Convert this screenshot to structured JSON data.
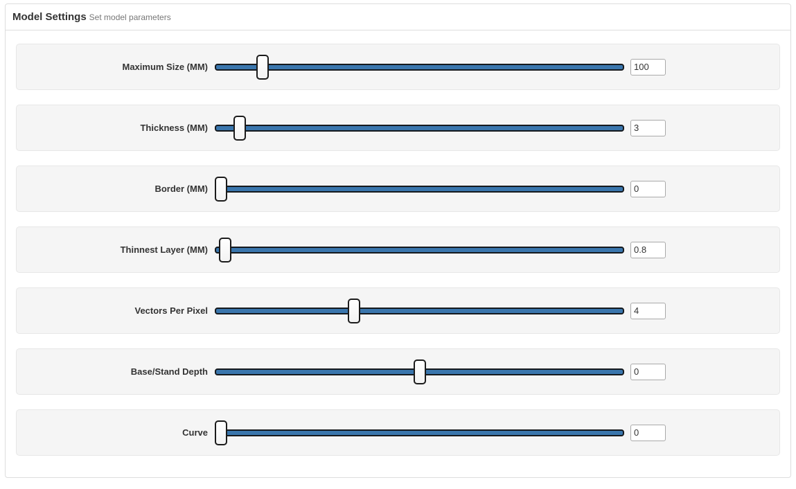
{
  "panel": {
    "title": "Model Settings",
    "subtitle": "Set model parameters"
  },
  "colors": {
    "track_blue": "#3a76ad",
    "track_border": "#15191d",
    "handle_border": "#1b1b1b",
    "handle_fill": "#ffffff",
    "row_bg": "#f5f5f5",
    "row_border": "#e7e7e7",
    "panel_border": "#dddddd",
    "title": "#333333",
    "subtitle": "#777777",
    "label": "#333333",
    "input_border": "#a9a9a9"
  },
  "sliders": [
    {
      "label": "Maximum Size (MM)",
      "value": "100",
      "position_pct": 10.5
    },
    {
      "label": "Thickness (MM)",
      "value": "3",
      "position_pct": 4.7
    },
    {
      "label": "Border (MM)",
      "value": "0",
      "position_pct": 0
    },
    {
      "label": "Thinnest Layer (MM)",
      "value": "0.8",
      "position_pct": 1.0
    },
    {
      "label": "Vectors Per Pixel",
      "value": "4",
      "position_pct": 33.5
    },
    {
      "label": "Base/Stand Depth",
      "value": "0",
      "position_pct": 50
    },
    {
      "label": "Curve",
      "value": "0",
      "position_pct": 0
    }
  ]
}
